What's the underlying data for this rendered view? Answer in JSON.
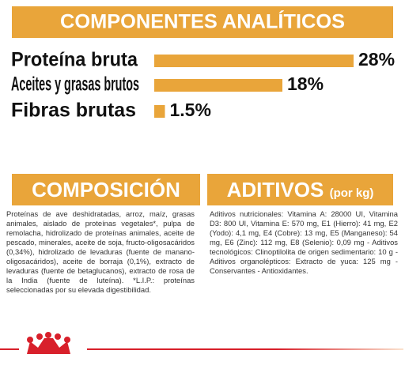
{
  "chart_data": {
    "type": "bar",
    "title": "COMPONENTES ANALÍTICOS",
    "categories": [
      "Proteína bruta",
      "Aceites y grasas brutos",
      "Fibras brutas"
    ],
    "values": [
      28,
      18,
      1.5
    ],
    "value_labels": [
      "28%",
      "18%",
      "1.5%"
    ],
    "color": "#e9a53a"
  },
  "composition": {
    "title": "COMPOSICIÓN",
    "text": "Proteínas de ave deshidratadas, arroz, maíz, grasas animales, aislado de proteínas vegetales*, pulpa de remolacha, hidrolizado de proteínas animales, aceite de pescado, minerales, aceite de soja, fructo-oligosacáridos (0,34%), hidrolizado de levaduras (fuente de manano-oligosacáridos), aceite de borraja (0,1%), extracto de levaduras (fuente de betaglucanos), extracto de rosa de la India (fuente de luteína). *L.I.P.: proteínas seleccionadas por su elevada digestibilidad."
  },
  "additives": {
    "title": "ADITIVOS",
    "subtitle": "(por kg)",
    "text": "Aditivos nutricionales: Vitamina A: 28000 UI, Vitamina D3: 800 UI, Vitamina E: 570 mg, E1 (Hierro): 41 mg, E2 (Yodo): 4,1 mg, E4 (Cobre): 13 mg, E5 (Manganeso): 54 mg, E6 (Zinc): 112 mg, E8 (Selenio): 0,09 mg - Aditivos tecnológicos: Clinoptilolita de origen sedimentario: 10 g - Aditivos organolépticos: Extracto de yuca: 125 mg - Conservantes - Antioxidantes."
  }
}
